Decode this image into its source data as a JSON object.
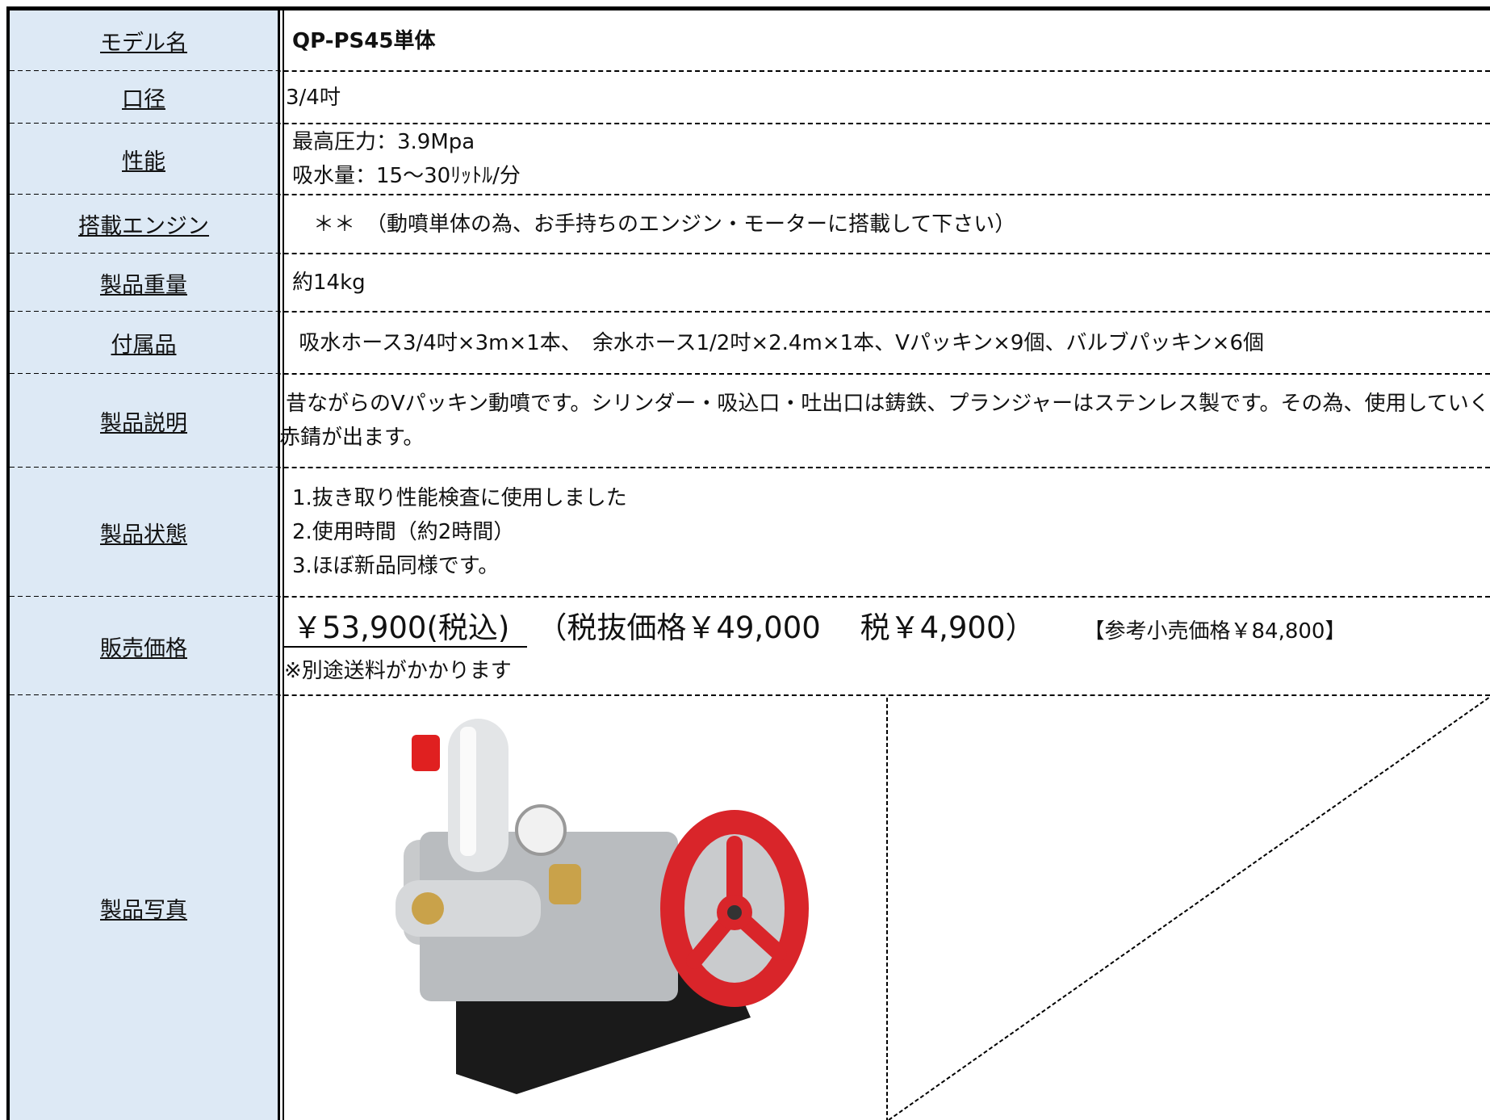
{
  "rows": [
    {
      "label": "モデル名",
      "lines": [
        "QP-PS45単体"
      ]
    },
    {
      "label": "口径",
      "lines": [
        "3/4吋"
      ]
    },
    {
      "label": "性能",
      "lines": [
        "最高圧力：3.9Mpa",
        "吸水量：15～30ﾘｯﾄﾙ/分"
      ]
    },
    {
      "label": "搭載エンジン",
      "lines": [
        "　＊＊　（動噴単体の為、お手持ちのエンジン・モーターに搭載して下さい）"
      ]
    },
    {
      "label": "製品重量",
      "lines": [
        "約14kg"
      ]
    },
    {
      "label": "付属品",
      "lines": [
        " 吸水ホース3/4吋×3m×1本、　余水ホース1/2吋×2.4m×1本、Vパッキン×9個、バルブパッキン×6個"
      ]
    },
    {
      "label": "製品説明",
      "lines": [
        "昔ながらのVパッキン動噴です。シリンダー・吸込口・吐出口は鋳鉄、プランジャーはステンレス製です。その為、使用していくと若干",
        "赤錆が出ます。"
      ]
    },
    {
      "label": "製品状態",
      "lines": [
        "1.抜き取り性能検査に使用しました",
        "2.使用時間（約2時間）",
        "3.ほぼ新品同様です。"
      ]
    },
    {
      "label": "販売価格",
      "price": "￥53,900(税込)",
      "price_detail": "（税抜価格￥49,000　 税￥4,900）",
      "reference": "【参考小売価格￥84,800】",
      "note": "※別途送料がかかります"
    },
    {
      "label": "製品写真"
    }
  ]
}
